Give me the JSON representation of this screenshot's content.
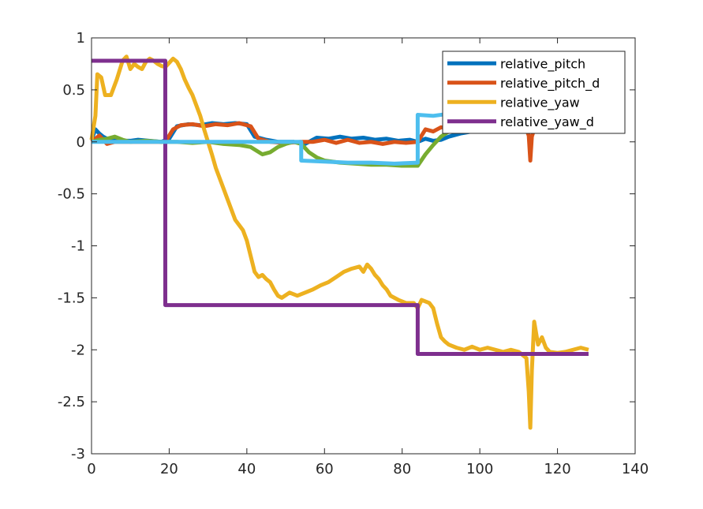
{
  "chart_data": {
    "type": "line",
    "xlim": [
      0,
      140
    ],
    "ylim": [
      -3,
      1
    ],
    "xticks": [
      0,
      20,
      40,
      60,
      80,
      100,
      120,
      140
    ],
    "yticks": [
      1,
      0.5,
      0,
      -0.5,
      -1,
      -1.5,
      -2,
      -2.5,
      -3
    ],
    "grid": false,
    "legend_position": "top-right",
    "series": [
      {
        "name": "relative_pitch",
        "color": "#0072BD",
        "in_legend": true,
        "points": [
          [
            0,
            0.02
          ],
          [
            1,
            0.12
          ],
          [
            2,
            0.08
          ],
          [
            3,
            0.05
          ],
          [
            4,
            0.03
          ],
          [
            6,
            0.02
          ],
          [
            8,
            0.01
          ],
          [
            10,
            0.01
          ],
          [
            12,
            0.02
          ],
          [
            15,
            0.01
          ],
          [
            18,
            0.0
          ],
          [
            20,
            0.03
          ],
          [
            22,
            0.15
          ],
          [
            25,
            0.17
          ],
          [
            28,
            0.16
          ],
          [
            31,
            0.18
          ],
          [
            34,
            0.17
          ],
          [
            37,
            0.18
          ],
          [
            40,
            0.17
          ],
          [
            42,
            0.05
          ],
          [
            45,
            0.02
          ],
          [
            48,
            0.0
          ],
          [
            52,
            0.0
          ],
          [
            55,
            -0.02
          ],
          [
            58,
            0.04
          ],
          [
            61,
            0.03
          ],
          [
            64,
            0.05
          ],
          [
            67,
            0.03
          ],
          [
            70,
            0.04
          ],
          [
            73,
            0.02
          ],
          [
            76,
            0.03
          ],
          [
            79,
            0.01
          ],
          [
            82,
            0.02
          ],
          [
            84,
            0.0
          ],
          [
            86,
            0.03
          ],
          [
            88,
            0.01
          ],
          [
            90,
            0.02
          ],
          [
            92,
            0.05
          ],
          [
            95,
            0.08
          ],
          [
            98,
            0.1
          ],
          [
            101,
            0.12
          ],
          [
            104,
            0.11
          ],
          [
            107,
            0.12
          ],
          [
            110,
            0.13
          ],
          [
            113,
            0.12
          ],
          [
            116,
            0.13
          ],
          [
            119,
            0.12
          ],
          [
            122,
            0.13
          ],
          [
            125,
            0.12
          ],
          [
            128,
            0.13
          ]
        ]
      },
      {
        "name": "relative_pitch_d",
        "color": "#D95319",
        "in_legend": true,
        "points": [
          [
            0,
            0.0
          ],
          [
            2,
            0.06
          ],
          [
            4,
            -0.02
          ],
          [
            6,
            0.0
          ],
          [
            8,
            0.0
          ],
          [
            12,
            0.0
          ],
          [
            16,
            0.0
          ],
          [
            19,
            0.0
          ],
          [
            21,
            0.12
          ],
          [
            23,
            0.16
          ],
          [
            26,
            0.17
          ],
          [
            29,
            0.15
          ],
          [
            32,
            0.17
          ],
          [
            35,
            0.16
          ],
          [
            38,
            0.18
          ],
          [
            41,
            0.15
          ],
          [
            43,
            0.03
          ],
          [
            46,
            0.0
          ],
          [
            50,
            -0.01
          ],
          [
            54,
            0.0
          ],
          [
            57,
            0.0
          ],
          [
            60,
            0.02
          ],
          [
            63,
            -0.01
          ],
          [
            66,
            0.02
          ],
          [
            69,
            -0.01
          ],
          [
            72,
            0.0
          ],
          [
            75,
            -0.02
          ],
          [
            78,
            0.0
          ],
          [
            81,
            -0.01
          ],
          [
            84,
            0.0
          ],
          [
            86,
            0.12
          ],
          [
            88,
            0.1
          ],
          [
            90,
            0.14
          ],
          [
            93,
            0.13
          ],
          [
            96,
            0.12
          ],
          [
            99,
            0.11
          ],
          [
            102,
            0.13
          ],
          [
            105,
            0.12
          ],
          [
            108,
            0.12
          ],
          [
            110,
            0.13
          ],
          [
            112,
            0.12
          ],
          [
            112.6,
            0.06
          ],
          [
            113,
            -0.18
          ],
          [
            113.4,
            0.05
          ],
          [
            114,
            0.12
          ],
          [
            117,
            0.12
          ],
          [
            120,
            0.13
          ],
          [
            123,
            0.12
          ],
          [
            126,
            0.12
          ],
          [
            128,
            0.12
          ]
        ]
      },
      {
        "name": "relative_yaw",
        "color": "#EDB120",
        "in_legend": true,
        "points": [
          [
            0,
            0.02
          ],
          [
            1,
            0.25
          ],
          [
            1.5,
            0.65
          ],
          [
            2.5,
            0.62
          ],
          [
            3.5,
            0.45
          ],
          [
            5,
            0.45
          ],
          [
            6.5,
            0.6
          ],
          [
            8,
            0.78
          ],
          [
            9,
            0.82
          ],
          [
            10,
            0.7
          ],
          [
            11,
            0.75
          ],
          [
            12,
            0.72
          ],
          [
            13,
            0.7
          ],
          [
            14,
            0.77
          ],
          [
            15,
            0.8
          ],
          [
            16,
            0.78
          ],
          [
            17,
            0.75
          ],
          [
            18,
            0.73
          ],
          [
            19,
            0.72
          ],
          [
            20,
            0.76
          ],
          [
            21,
            0.8
          ],
          [
            22,
            0.77
          ],
          [
            23,
            0.7
          ],
          [
            24,
            0.6
          ],
          [
            25,
            0.52
          ],
          [
            26,
            0.45
          ],
          [
            27,
            0.35
          ],
          [
            28,
            0.25
          ],
          [
            29,
            0.12
          ],
          [
            30,
            0.0
          ],
          [
            31,
            -0.12
          ],
          [
            32,
            -0.25
          ],
          [
            33,
            -0.35
          ],
          [
            34,
            -0.45
          ],
          [
            35,
            -0.55
          ],
          [
            36,
            -0.65
          ],
          [
            37,
            -0.75
          ],
          [
            38,
            -0.8
          ],
          [
            39,
            -0.85
          ],
          [
            40,
            -0.95
          ],
          [
            41,
            -1.1
          ],
          [
            42,
            -1.25
          ],
          [
            43,
            -1.3
          ],
          [
            44,
            -1.28
          ],
          [
            45,
            -1.32
          ],
          [
            46,
            -1.35
          ],
          [
            47,
            -1.42
          ],
          [
            48,
            -1.48
          ],
          [
            49,
            -1.5
          ],
          [
            51,
            -1.45
          ],
          [
            53,
            -1.48
          ],
          [
            55,
            -1.45
          ],
          [
            57,
            -1.42
          ],
          [
            59,
            -1.38
          ],
          [
            61,
            -1.35
          ],
          [
            63,
            -1.3
          ],
          [
            65,
            -1.25
          ],
          [
            67,
            -1.22
          ],
          [
            69,
            -1.2
          ],
          [
            70,
            -1.25
          ],
          [
            71,
            -1.18
          ],
          [
            72,
            -1.22
          ],
          [
            73,
            -1.28
          ],
          [
            74,
            -1.32
          ],
          [
            75,
            -1.38
          ],
          [
            76,
            -1.42
          ],
          [
            77,
            -1.48
          ],
          [
            79,
            -1.52
          ],
          [
            81,
            -1.55
          ],
          [
            83,
            -1.55
          ],
          [
            84,
            -1.6
          ],
          [
            85,
            -1.52
          ],
          [
            87,
            -1.55
          ],
          [
            88,
            -1.6
          ],
          [
            89,
            -1.75
          ],
          [
            90,
            -1.88
          ],
          [
            91,
            -1.92
          ],
          [
            92,
            -1.95
          ],
          [
            94,
            -1.98
          ],
          [
            96,
            -2.0
          ],
          [
            98,
            -1.97
          ],
          [
            100,
            -2.0
          ],
          [
            102,
            -1.98
          ],
          [
            104,
            -2.0
          ],
          [
            106,
            -2.02
          ],
          [
            108,
            -2.0
          ],
          [
            110,
            -2.02
          ],
          [
            111,
            -2.05
          ],
          [
            112,
            -2.08
          ],
          [
            112.6,
            -2.4
          ],
          [
            113,
            -2.75
          ],
          [
            113.4,
            -2.2
          ],
          [
            114,
            -1.73
          ],
          [
            115,
            -1.95
          ],
          [
            116,
            -1.88
          ],
          [
            117,
            -1.98
          ],
          [
            118,
            -2.02
          ],
          [
            120,
            -2.03
          ],
          [
            122,
            -2.02
          ],
          [
            124,
            -2.0
          ],
          [
            126,
            -1.98
          ],
          [
            128,
            -2.0
          ]
        ]
      },
      {
        "name": "relative_yaw_d",
        "color": "#7E2F8E",
        "in_legend": true,
        "points": [
          [
            0,
            0.78
          ],
          [
            19,
            0.78
          ],
          [
            19,
            -1.57
          ],
          [
            84,
            -1.57
          ],
          [
            84,
            -2.04
          ],
          [
            128,
            -2.04
          ]
        ]
      },
      {
        "name": "",
        "color": "#77AC30",
        "in_legend": false,
        "points": [
          [
            0,
            0.0
          ],
          [
            2,
            0.02
          ],
          [
            4,
            0.03
          ],
          [
            6,
            0.05
          ],
          [
            8,
            0.02
          ],
          [
            10,
            0.0
          ],
          [
            14,
            0.01
          ],
          [
            18,
            0.0
          ],
          [
            22,
            0.0
          ],
          [
            26,
            -0.01
          ],
          [
            30,
            0.0
          ],
          [
            34,
            -0.02
          ],
          [
            38,
            -0.03
          ],
          [
            41,
            -0.05
          ],
          [
            44,
            -0.12
          ],
          [
            46,
            -0.1
          ],
          [
            48,
            -0.05
          ],
          [
            50,
            -0.02
          ],
          [
            52,
            0.0
          ],
          [
            54,
            -0.02
          ],
          [
            56,
            -0.1
          ],
          [
            58,
            -0.15
          ],
          [
            60,
            -0.18
          ],
          [
            64,
            -0.2
          ],
          [
            68,
            -0.21
          ],
          [
            72,
            -0.22
          ],
          [
            76,
            -0.22
          ],
          [
            80,
            -0.23
          ],
          [
            84,
            -0.23
          ],
          [
            86,
            -0.12
          ],
          [
            88,
            -0.03
          ],
          [
            90,
            0.05
          ],
          [
            92,
            0.1
          ],
          [
            94,
            0.12
          ]
        ]
      },
      {
        "name": "",
        "color": "#4DBEEE",
        "in_legend": false,
        "points": [
          [
            0,
            0.0
          ],
          [
            10,
            0.0
          ],
          [
            20,
            0.0
          ],
          [
            30,
            0.0
          ],
          [
            40,
            0.0
          ],
          [
            50,
            0.0
          ],
          [
            54,
            0.0
          ],
          [
            54,
            -0.18
          ],
          [
            60,
            -0.19
          ],
          [
            66,
            -0.2
          ],
          [
            72,
            -0.2
          ],
          [
            78,
            -0.21
          ],
          [
            84,
            -0.2
          ],
          [
            84,
            0.26
          ],
          [
            88,
            0.25
          ],
          [
            92,
            0.27
          ],
          [
            96,
            0.28
          ],
          [
            98,
            0.3
          ]
        ]
      }
    ]
  }
}
